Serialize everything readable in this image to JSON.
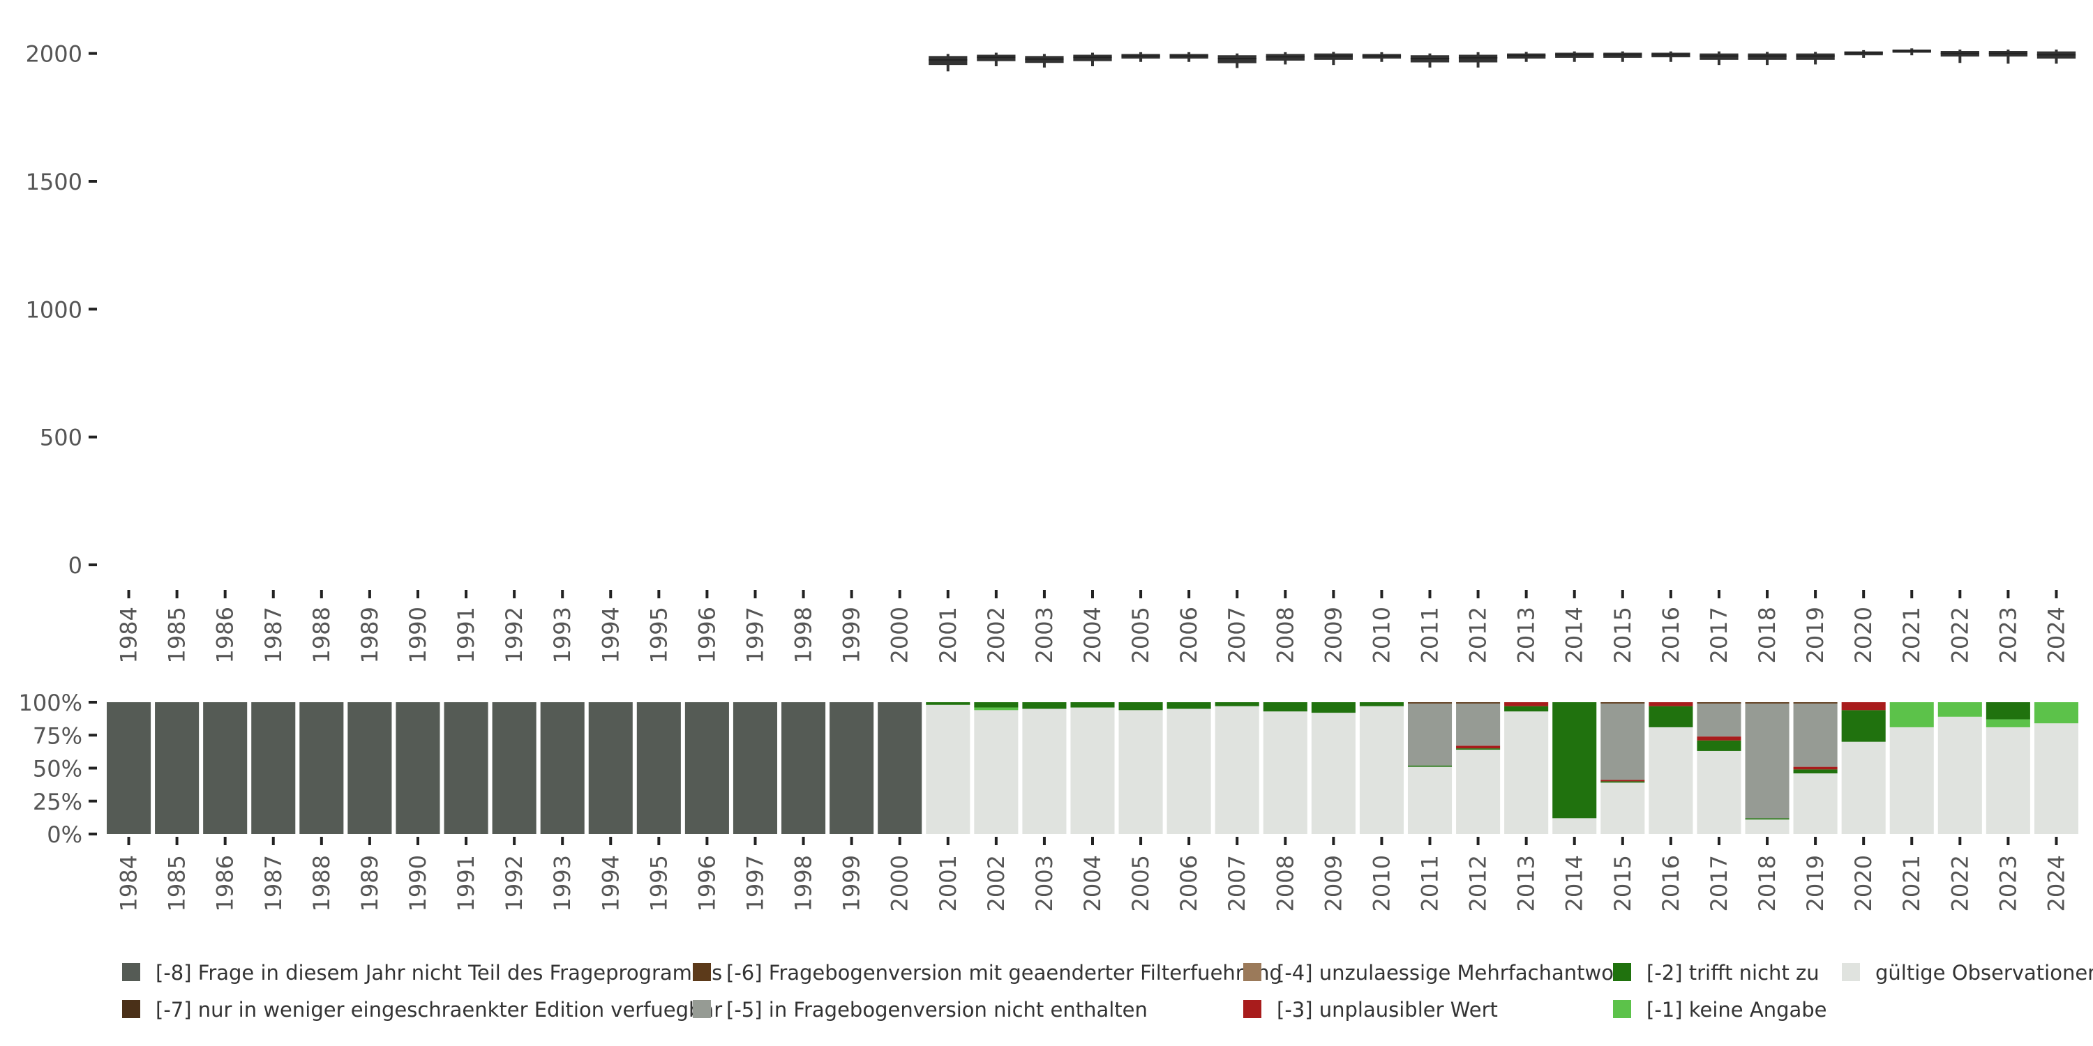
{
  "chart_data": [
    {
      "type": "boxplot",
      "title": "",
      "xlabel": "",
      "ylabel": "",
      "ylim": [
        0,
        2100
      ],
      "yticks": [
        0,
        500,
        1000,
        1500,
        2000
      ],
      "categories": [
        "1984",
        "1985",
        "1986",
        "1987",
        "1988",
        "1989",
        "1990",
        "1991",
        "1992",
        "1993",
        "1994",
        "1995",
        "1996",
        "1997",
        "1998",
        "1999",
        "2000",
        "2001",
        "2002",
        "2003",
        "2004",
        "2005",
        "2006",
        "2007",
        "2008",
        "2009",
        "2010",
        "2011",
        "2012",
        "2013",
        "2014",
        "2015",
        "2016",
        "2017",
        "2018",
        "2019",
        "2020",
        "2021",
        "2022",
        "2023",
        "2024"
      ],
      "boxes": [
        null,
        null,
        null,
        null,
        null,
        null,
        null,
        null,
        null,
        null,
        null,
        null,
        null,
        null,
        null,
        null,
        null,
        {
          "whisker_low": 1930,
          "q1": 1955,
          "median": 1975,
          "q3": 1990,
          "whisker_high": 1998
        },
        {
          "whisker_low": 1950,
          "q1": 1970,
          "median": 1985,
          "q3": 1995,
          "whisker_high": 2003
        },
        {
          "whisker_low": 1945,
          "q1": 1963,
          "median": 1978,
          "q3": 1990,
          "whisker_high": 1998
        },
        {
          "whisker_low": 1950,
          "q1": 1970,
          "median": 1985,
          "q3": 1995,
          "whisker_high": 2003
        },
        {
          "whisker_low": 1967,
          "q1": 1980,
          "median": 1990,
          "q3": 1998,
          "whisker_high": 2005
        },
        {
          "whisker_low": 1967,
          "q1": 1980,
          "median": 1990,
          "q3": 1998,
          "whisker_high": 2005
        },
        {
          "whisker_low": 1943,
          "q1": 1962,
          "median": 1980,
          "q3": 1993,
          "whisker_high": 2000
        },
        {
          "whisker_low": 1957,
          "q1": 1972,
          "median": 1987,
          "q3": 1998,
          "whisker_high": 2005
        },
        {
          "whisker_low": 1955,
          "q1": 1975,
          "median": 1990,
          "q3": 2000,
          "whisker_high": 2006
        },
        {
          "whisker_low": 1967,
          "q1": 1980,
          "median": 1990,
          "q3": 1998,
          "whisker_high": 2005
        },
        {
          "whisker_low": 1945,
          "q1": 1965,
          "median": 1980,
          "q3": 1993,
          "whisker_high": 2000
        },
        {
          "whisker_low": 1945,
          "q1": 1965,
          "median": 1983,
          "q3": 1995,
          "whisker_high": 2005
        },
        {
          "whisker_low": 1967,
          "q1": 1980,
          "median": 1992,
          "q3": 2000,
          "whisker_high": 2006
        },
        {
          "whisker_low": 1967,
          "q1": 1983,
          "median": 1995,
          "q3": 2003,
          "whisker_high": 2008
        },
        {
          "whisker_low": 1967,
          "q1": 1983,
          "median": 1995,
          "q3": 2003,
          "whisker_high": 2008
        },
        {
          "whisker_low": 1967,
          "q1": 1985,
          "median": 1995,
          "q3": 2003,
          "whisker_high": 2008
        },
        {
          "whisker_low": 1955,
          "q1": 1975,
          "median": 1990,
          "q3": 2000,
          "whisker_high": 2008
        },
        {
          "whisker_low": 1955,
          "q1": 1975,
          "median": 1990,
          "q3": 2000,
          "whisker_high": 2006
        },
        {
          "whisker_low": 1957,
          "q1": 1975,
          "median": 1990,
          "q3": 2000,
          "whisker_high": 2006
        },
        {
          "whisker_low": 1983,
          "q1": 1993,
          "median": 2002,
          "q3": 2008,
          "whisker_high": 2013
        },
        {
          "whisker_low": 1993,
          "q1": 2003,
          "median": 2010,
          "q3": 2015,
          "whisker_high": 2020
        },
        {
          "whisker_low": 1963,
          "q1": 1988,
          "median": 2000,
          "q3": 2010,
          "whisker_high": 2015
        },
        {
          "whisker_low": 1960,
          "q1": 1988,
          "median": 2000,
          "q3": 2010,
          "whisker_high": 2015
        },
        {
          "whisker_low": 1960,
          "q1": 1980,
          "median": 1995,
          "q3": 2008,
          "whisker_high": 2015
        }
      ]
    },
    {
      "type": "bar",
      "stacked": true,
      "normalized": true,
      "yticks": [
        "0%",
        "25%",
        "50%",
        "75%",
        "100%"
      ],
      "categories": [
        "1984",
        "1985",
        "1986",
        "1987",
        "1988",
        "1989",
        "1990",
        "1991",
        "1992",
        "1993",
        "1994",
        "1995",
        "1996",
        "1997",
        "1998",
        "1999",
        "2000",
        "2001",
        "2002",
        "2003",
        "2004",
        "2005",
        "2006",
        "2007",
        "2008",
        "2009",
        "2010",
        "2011",
        "2012",
        "2013",
        "2014",
        "2015",
        "2016",
        "2017",
        "2018",
        "2019",
        "2020",
        "2021",
        "2022",
        "2023",
        "2024"
      ],
      "series": [
        {
          "name": "[-8] Frage in diesem Jahr nicht Teil des Frageprogramms",
          "color": "#555b55",
          "values": [
            1,
            1,
            1,
            1,
            1,
            1,
            1,
            1,
            1,
            1,
            1,
            1,
            1,
            1,
            1,
            1,
            1,
            0,
            0,
            0,
            0,
            0,
            0,
            0,
            0,
            0,
            0,
            0,
            0,
            0,
            0,
            0,
            0,
            0,
            0,
            0,
            0,
            0,
            0,
            0,
            0
          ]
        },
        {
          "name": "[-7] nur in weniger eingeschraenkter Edition verfuegbar",
          "color": "#4a3018",
          "values": [
            0,
            0,
            0,
            0,
            0,
            0,
            0,
            0,
            0,
            0,
            0,
            0,
            0,
            0,
            0,
            0,
            0,
            0,
            0,
            0,
            0,
            0,
            0,
            0,
            0,
            0,
            0,
            0,
            0,
            0,
            0,
            0,
            0,
            0,
            0,
            0,
            0,
            0,
            0,
            0,
            0
          ]
        },
        {
          "name": "[-6] Fragebogenversion mit geaenderter Filterfuehrung",
          "color": "#5c3a1a",
          "values": [
            0,
            0,
            0,
            0,
            0,
            0,
            0,
            0,
            0,
            0,
            0,
            0,
            0,
            0,
            0,
            0,
            0,
            0,
            0,
            0,
            0,
            0,
            0,
            0,
            0,
            0,
            0,
            0.01,
            0.01,
            0,
            0,
            0.01,
            0,
            0.01,
            0.01,
            0.01,
            0,
            0,
            0,
            0,
            0
          ]
        },
        {
          "name": "[-5] in Fragebogenversion nicht enthalten",
          "color": "#969b94",
          "values": [
            0,
            0,
            0,
            0,
            0,
            0,
            0,
            0,
            0,
            0,
            0,
            0,
            0,
            0,
            0,
            0,
            0,
            0,
            0,
            0,
            0,
            0,
            0,
            0,
            0,
            0,
            0,
            0.47,
            0.32,
            0,
            0,
            0.58,
            0,
            0.25,
            0.87,
            0.48,
            0,
            0,
            0,
            0,
            0
          ]
        },
        {
          "name": "[-4] unzulaessige Mehrfachantwort",
          "color": "#9b7a5a",
          "values": [
            0,
            0,
            0,
            0,
            0,
            0,
            0,
            0,
            0,
            0,
            0,
            0,
            0,
            0,
            0,
            0,
            0,
            0,
            0,
            0,
            0,
            0,
            0,
            0,
            0,
            0,
            0,
            0,
            0,
            0,
            0,
            0,
            0,
            0,
            0,
            0,
            0,
            0,
            0,
            0,
            0
          ]
        },
        {
          "name": "[-3] unplausibler Wert",
          "color": "#a81c1c",
          "values": [
            0,
            0,
            0,
            0,
            0,
            0,
            0,
            0,
            0,
            0,
            0,
            0,
            0,
            0,
            0,
            0,
            0,
            0,
            0,
            0,
            0,
            0,
            0,
            0,
            0,
            0,
            0,
            0,
            0.02,
            0.03,
            0,
            0.01,
            0.03,
            0.03,
            0,
            0.02,
            0.06,
            0,
            0,
            0,
            0
          ]
        },
        {
          "name": "[-2] trifft nicht zu",
          "color": "#20720e",
          "values": [
            0,
            0,
            0,
            0,
            0,
            0,
            0,
            0,
            0,
            0,
            0,
            0,
            0,
            0,
            0,
            0,
            0,
            0.02,
            0.04,
            0.05,
            0.04,
            0.06,
            0.05,
            0.03,
            0.07,
            0.08,
            0.03,
            0.01,
            0.01,
            0.04,
            0.88,
            0.01,
            0.16,
            0.08,
            0.01,
            0.03,
            0.24,
            0,
            0,
            0.13,
            0
          ]
        },
        {
          "name": "[-1] keine Angabe",
          "color": "#5cc24a",
          "values": [
            0,
            0,
            0,
            0,
            0,
            0,
            0,
            0,
            0,
            0,
            0,
            0,
            0,
            0,
            0,
            0,
            0,
            0,
            0.02,
            0,
            0,
            0,
            0,
            0,
            0,
            0,
            0,
            0,
            0,
            0,
            0,
            0,
            0,
            0,
            0,
            0,
            0,
            0.19,
            0.11,
            0.06,
            0.16
          ]
        },
        {
          "name": "gültige Observationen",
          "color": "#e0e3df",
          "values": [
            0,
            0,
            0,
            0,
            0,
            0,
            0,
            0,
            0,
            0,
            0,
            0,
            0,
            0,
            0,
            0,
            0,
            0.98,
            0.94,
            0.95,
            0.96,
            0.94,
            0.95,
            0.97,
            0.93,
            0.92,
            0.97,
            0.51,
            0.64,
            0.93,
            0.12,
            0.39,
            0.81,
            0.63,
            0.11,
            0.46,
            0.7,
            0.81,
            0.89,
            0.81,
            0.84
          ]
        }
      ]
    }
  ],
  "legend": {
    "rows": [
      [
        "[-8] Frage in diesem Jahr nicht Teil des Frageprogramms",
        "[-6] Fragebogenversion mit geaenderter Filterfuehrung",
        "[-4] unzulaessige Mehrfachantwort",
        "[-2] trifft nicht zu",
        "gültige Observationen"
      ],
      [
        "[-7] nur in weniger eingeschraenkter Edition verfuegbar",
        "[-5] in Fragebogenversion nicht enthalten",
        "[-3] unplausibler Wert",
        "[-1] keine Angabe"
      ]
    ]
  },
  "colors": {
    "box": "#333333",
    "tick_text": "#555555",
    "axis_tick": "#222222"
  }
}
